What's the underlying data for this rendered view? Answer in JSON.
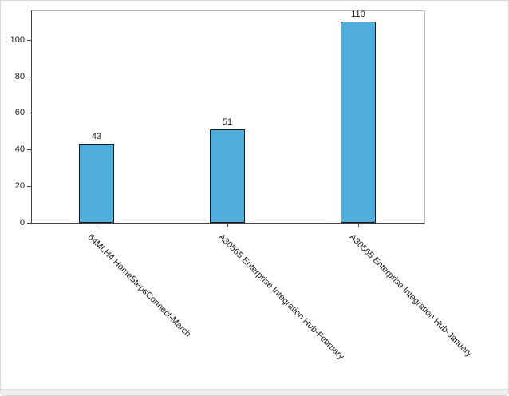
{
  "chart_data": {
    "type": "bar",
    "title": "",
    "xlabel": "",
    "ylabel": "",
    "categories": [
      "64MLH4 HomeStepsConnect-March",
      "A30565 Enterprise Integration Hub-February",
      "A30565 Enterprise Integration Hub-January"
    ],
    "values": [
      43,
      51,
      110
    ],
    "value_labels": [
      "43",
      "51",
      "110"
    ],
    "yticks": [
      0,
      20,
      40,
      60,
      80,
      100
    ],
    "ytick_labels": [
      "0",
      "20",
      "40",
      "60",
      "80",
      "100"
    ],
    "ylim": [
      0,
      116
    ],
    "grid": false,
    "legend": "none",
    "data_labels": true,
    "bar_color": "#4FAEDC",
    "bar_border_color": "#1a1a1a",
    "axis_color": "#444444"
  }
}
